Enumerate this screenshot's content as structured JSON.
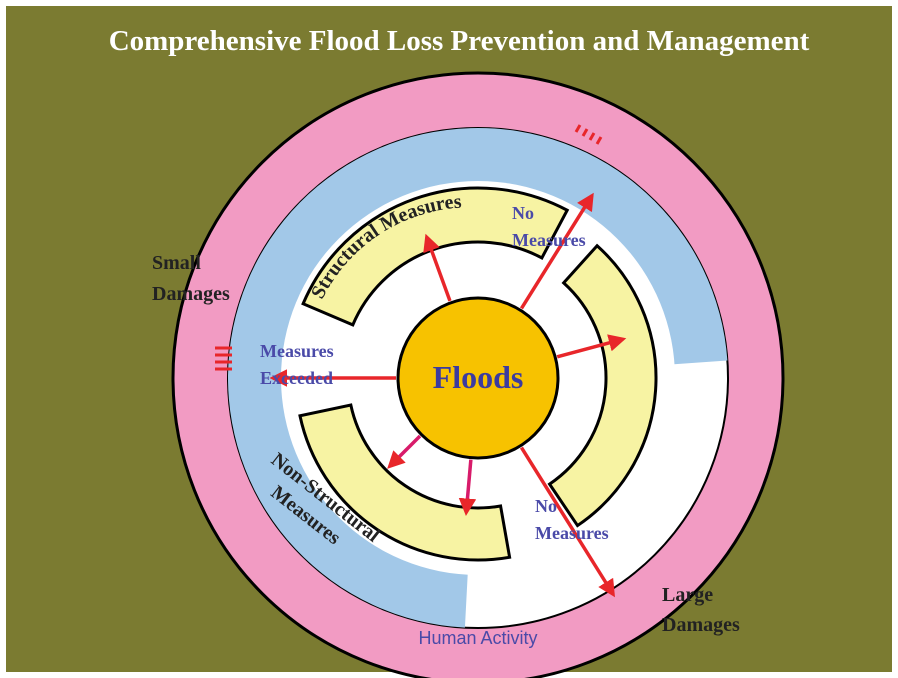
{
  "title": "Comprehensive Flood Loss Prevention and Management",
  "center": "Floods",
  "structural": "Structural Measures",
  "non_structural": [
    "Non-Structural",
    "Measures"
  ],
  "no_measures_top": [
    "No",
    "Measures"
  ],
  "measures_exceeded": [
    "Measures",
    "Exceeded"
  ],
  "no_measures_bottom": [
    "No",
    "Measures"
  ],
  "small_damages": [
    "Small",
    "Damages"
  ],
  "large_damages": [
    "Large",
    "Damages"
  ],
  "human_activity": "Human Activity"
}
